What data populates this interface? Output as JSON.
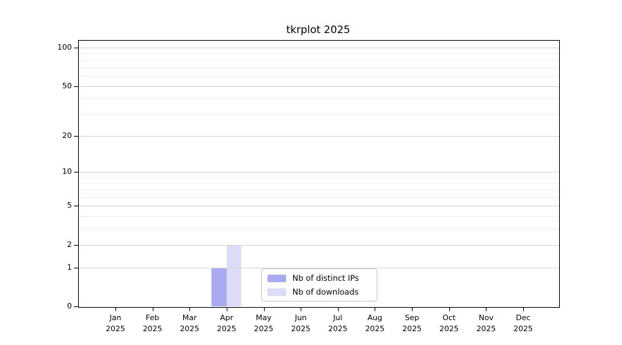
{
  "chart_data": {
    "type": "bar",
    "title": "tkrplot 2025",
    "categories": [
      "Jan",
      "Feb",
      "Mar",
      "Apr",
      "May",
      "Jun",
      "Jul",
      "Aug",
      "Sep",
      "Oct",
      "Nov",
      "Dec"
    ],
    "x_year_label": "2025",
    "series": [
      {
        "name": "Nb of distinct IPs",
        "color": "#aaaaf2",
        "values": [
          0,
          0,
          0,
          1,
          0,
          0,
          0,
          0,
          0,
          0,
          0,
          0
        ]
      },
      {
        "name": "Nb of downloads",
        "color": "#dcdcf8",
        "values": [
          0,
          0,
          0,
          2,
          0,
          0,
          0,
          0,
          0,
          0,
          0,
          0
        ]
      }
    ],
    "y_axis": {
      "scale": "log10(1+x)",
      "tick_values": [
        0,
        1,
        2,
        5,
        10,
        20,
        50,
        100
      ],
      "minor_gridline_values": [
        3,
        4,
        6,
        7,
        8,
        9,
        30,
        40,
        60,
        70,
        80,
        90
      ],
      "range_top_value": 115
    },
    "legend": {
      "position": "lower-center-inside"
    },
    "colors": {
      "major_grid": "#d4d4d4",
      "minor_grid": "#efefef",
      "axis": "#000000",
      "background": "#ffffff"
    },
    "grid": "on"
  }
}
